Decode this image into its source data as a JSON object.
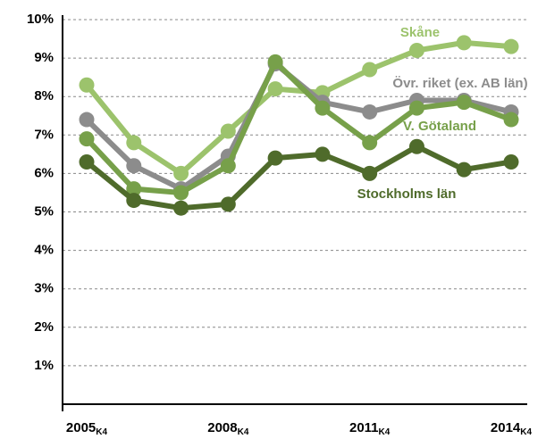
{
  "chart_data": {
    "type": "line",
    "categories": [
      "2005",
      null,
      null,
      "2008",
      null,
      null,
      "2011",
      null,
      null,
      "2014"
    ],
    "category_subscript": "K4",
    "ylim": [
      0,
      10
    ],
    "yticks": [
      {
        "value": 1,
        "label": "1%"
      },
      {
        "value": 2,
        "label": "2%"
      },
      {
        "value": 3,
        "label": "3%"
      },
      {
        "value": 4,
        "label": "4%"
      },
      {
        "value": 5,
        "label": "5%"
      },
      {
        "value": 6,
        "label": "6%"
      },
      {
        "value": 7,
        "label": "7%"
      },
      {
        "value": 8,
        "label": "8%"
      },
      {
        "value": 9,
        "label": "9%"
      },
      {
        "value": 10,
        "label": "10%"
      }
    ],
    "grid": true,
    "series": [
      {
        "name": "Skåne",
        "color": "#9cc36c",
        "values": [
          8.3,
          6.8,
          6.0,
          7.1,
          8.2,
          8.1,
          8.7,
          9.2,
          9.4,
          9.3
        ]
      },
      {
        "name": "Övr. riket (ex. AB län)",
        "color": "#8c8c8c",
        "values": [
          7.4,
          6.2,
          5.6,
          6.45,
          8.85,
          7.85,
          7.6,
          7.9,
          7.9,
          7.6
        ]
      },
      {
        "name": "V. Götaland",
        "color": "#77a04a",
        "values": [
          6.9,
          5.6,
          5.5,
          6.2,
          8.9,
          7.7,
          6.8,
          7.7,
          7.85,
          7.4
        ]
      },
      {
        "name": "Stockholms län",
        "color": "#4f6b2b",
        "values": [
          6.3,
          5.3,
          5.1,
          5.2,
          6.4,
          6.5,
          6.0,
          6.7,
          6.1,
          6.3
        ]
      }
    ]
  }
}
